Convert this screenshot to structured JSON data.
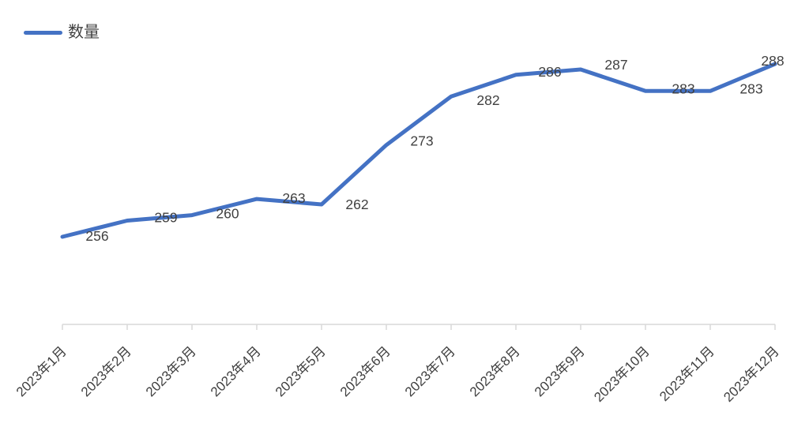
{
  "legend": {
    "series_label": "数量"
  },
  "chart_data": {
    "type": "line",
    "title": "",
    "xlabel": "",
    "ylabel": "",
    "categories": [
      "2023年1月",
      "2023年2月",
      "2023年3月",
      "2023年4月",
      "2023年5月",
      "2023年6月",
      "2023年7月",
      "2023年8月",
      "2023年9月",
      "2023年10月",
      "2023年11月",
      "2023年12月"
    ],
    "series": [
      {
        "name": "数量",
        "color": "#4472C4",
        "values": [
          256,
          259,
          260,
          263,
          262,
          273,
          282,
          286,
          287,
          283,
          283,
          288
        ]
      }
    ],
    "data_labels": true,
    "legend_position": "top-left",
    "x_tick_rotation": 45,
    "y_axis_visible": false,
    "grid": false,
    "ylim": [
      240,
      296
    ],
    "axis_color": "#D9D9D9",
    "label_color": "#404040"
  }
}
